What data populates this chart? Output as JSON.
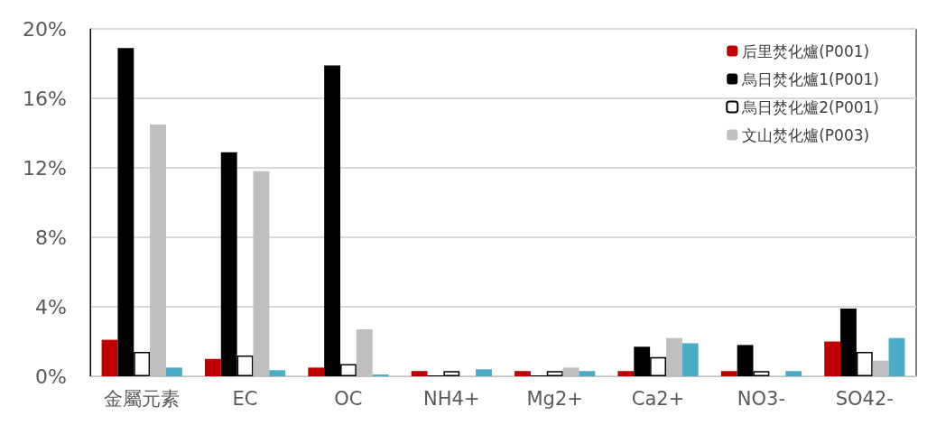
{
  "chart_data": {
    "type": "bar",
    "categories": [
      "金屬元素",
      "EC",
      "OC",
      "NH4+",
      "Mg2+",
      "Ca2+",
      "NO3-",
      "SO42-"
    ],
    "series": [
      {
        "name": "后里焚化爐(P001)",
        "color": "#c00000",
        "values": [
          2.1,
          1.0,
          0.5,
          0.3,
          0.3,
          0.3,
          0.3,
          2.0
        ]
      },
      {
        "name": "烏日焚化爐1(P001)",
        "color": "#000000",
        "values": [
          18.9,
          12.9,
          17.9,
          0.05,
          0.05,
          1.7,
          1.8,
          3.9
        ]
      },
      {
        "name": "烏日焚化爐2(P001)",
        "color": "#ffffff",
        "values": [
          1.4,
          1.2,
          0.7,
          0.3,
          0.3,
          1.1,
          0.3,
          1.4
        ]
      },
      {
        "name": "文山焚化爐(P003)",
        "color": "#bfbfbf",
        "values": [
          14.5,
          11.8,
          2.7,
          0,
          0.5,
          2.2,
          0,
          0.9
        ]
      },
      {
        "color": "#4bacc6",
        "values": [
          0.5,
          0.35,
          0.1,
          0.4,
          0.3,
          1.9,
          0.3,
          2.2
        ]
      }
    ],
    "ylim": [
      0,
      20
    ],
    "yticks": [
      {
        "value": 0,
        "label": "0%"
      },
      {
        "value": 4,
        "label": "4%"
      },
      {
        "value": 8,
        "label": "8%"
      },
      {
        "value": 12,
        "label": "12%"
      },
      {
        "value": 16,
        "label": "16%"
      },
      {
        "value": 20,
        "label": "20%"
      }
    ],
    "grid": "y",
    "legend": "top right"
  }
}
